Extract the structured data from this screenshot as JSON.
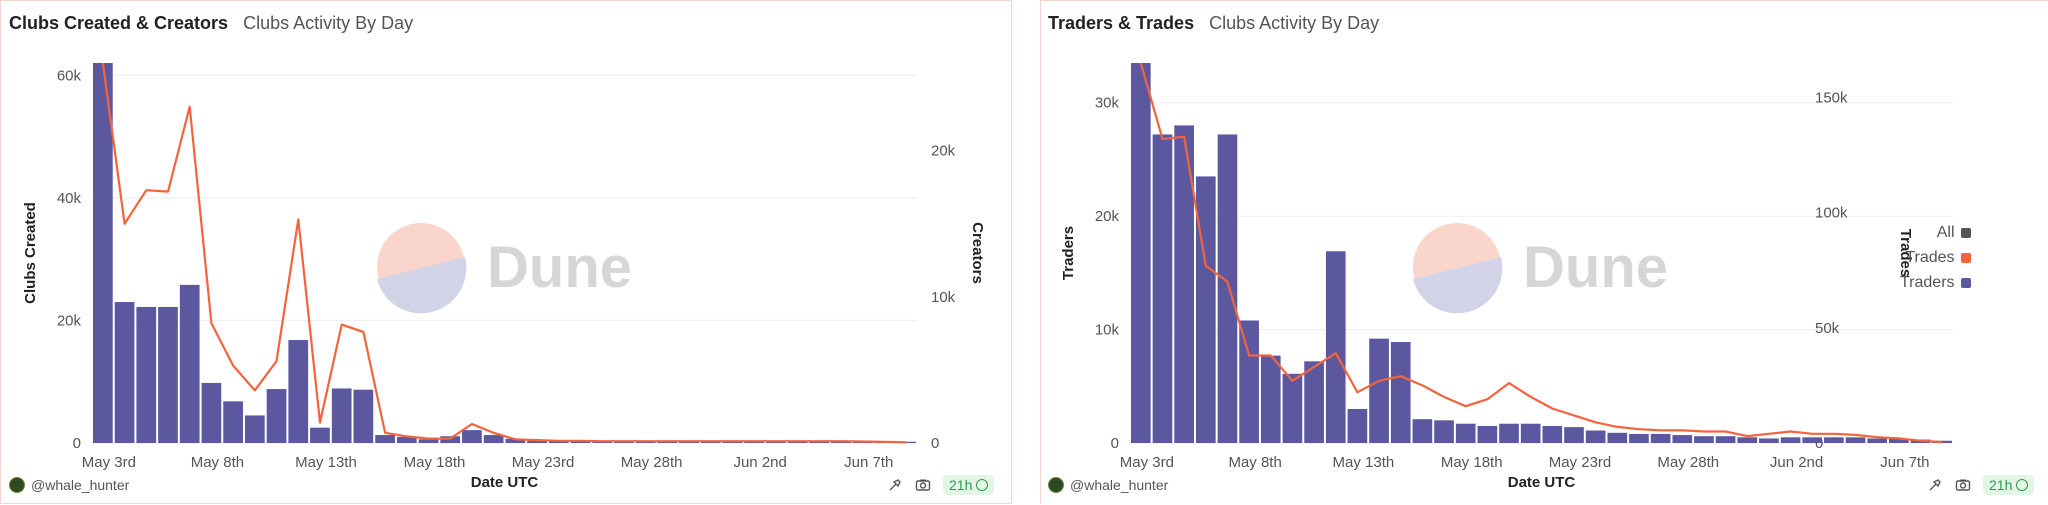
{
  "colors": {
    "bar": "#5b58a0",
    "line": "#f4643c",
    "all": "#555555",
    "watermark_top": "#f9d5cc",
    "watermark_bottom": "#d3d3e8",
    "watermark_text": "#d6d6d6"
  },
  "watermark": "Dune",
  "chart_data": [
    {
      "type": "bar",
      "title": "Clubs Created & Creators",
      "subtitle": "Clubs Activity By Day",
      "xlabel": "Date UTC",
      "ylabel": "Clubs Created",
      "y2label": "Creators",
      "x_tick_labels": [
        "May 3rd",
        "May 8th",
        "May 13th",
        "May 18th",
        "May 23rd",
        "May 28th",
        "Jun 2nd",
        "Jun 7th"
      ],
      "y_ticks": [
        "0",
        "20k",
        "40k",
        "60k"
      ],
      "y_tick_values": [
        0,
        20000,
        40000,
        60000
      ],
      "y2_ticks": [
        "0",
        "10k",
        "20k"
      ],
      "y2_tick_values": [
        0,
        10000,
        20000
      ],
      "ylim": [
        0,
        62000
      ],
      "y2lim": [
        0,
        26000
      ],
      "grid": true,
      "series": [
        {
          "kind": "bar",
          "axis": "left",
          "values": [
            64000,
            23000,
            22200,
            22200,
            25800,
            9800,
            6800,
            4500,
            8800,
            16800,
            2500,
            8900,
            8700,
            1300,
            1000,
            600,
            1100,
            2100,
            1300,
            700,
            500,
            400,
            400,
            300,
            300,
            300,
            300,
            300,
            300,
            300,
            300,
            300,
            300,
            300,
            300,
            300,
            300,
            200
          ]
        },
        {
          "kind": "line",
          "axis": "right",
          "values": [
            26000,
            15000,
            17300,
            17200,
            23000,
            8200,
            5300,
            3600,
            5600,
            15300,
            1400,
            8100,
            7600,
            700,
            450,
            300,
            300,
            1300,
            700,
            250,
            200,
            150,
            150,
            120,
            120,
            120,
            120,
            120,
            120,
            120,
            120,
            120,
            120,
            120,
            120,
            100,
            80,
            50
          ]
        }
      ]
    },
    {
      "type": "bar",
      "title": "Traders & Trades",
      "subtitle": "Clubs Activity By Day",
      "xlabel": "Date UTC",
      "ylabel": "Traders",
      "y2label": "Trades",
      "x_tick_labels": [
        "May 3rd",
        "May 8th",
        "May 13th",
        "May 18th",
        "May 23rd",
        "May 28th",
        "Jun 2nd",
        "Jun 7th"
      ],
      "y_ticks": [
        "0",
        "10k",
        "20k",
        "30k"
      ],
      "y_tick_values": [
        0,
        10000,
        20000,
        30000
      ],
      "y2_ticks": [
        "0",
        "50k",
        "100k",
        "150k"
      ],
      "y2_tick_values": [
        0,
        50000,
        100000,
        150000
      ],
      "ylim": [
        0,
        33500
      ],
      "y2lim": [
        0,
        165000
      ],
      "grid": true,
      "legend": {
        "position": "right",
        "items": [
          {
            "label": "All",
            "color": "#555555"
          },
          {
            "label": "Trades",
            "color": "#f4643c"
          },
          {
            "label": "Traders",
            "color": "#5b58a0"
          }
        ]
      },
      "series": [
        {
          "kind": "bar",
          "axis": "left",
          "name": "Traders",
          "values": [
            33500,
            27200,
            28000,
            23500,
            27200,
            10800,
            7700,
            6100,
            7200,
            16900,
            3000,
            9200,
            8900,
            2100,
            2000,
            1700,
            1500,
            1700,
            1700,
            1500,
            1400,
            1100,
            900,
            800,
            800,
            700,
            600,
            600,
            500,
            400,
            500,
            500,
            500,
            500,
            400,
            400,
            300,
            200
          ]
        },
        {
          "kind": "line",
          "axis": "right",
          "name": "Trades",
          "values": [
            165000,
            132000,
            133000,
            77000,
            70000,
            38000,
            38000,
            27000,
            33000,
            39000,
            22000,
            27000,
            29000,
            25000,
            20000,
            16000,
            19000,
            26000,
            20000,
            15000,
            12000,
            9000,
            7000,
            6000,
            5500,
            5500,
            5000,
            5000,
            3000,
            4000,
            5000,
            4000,
            4000,
            3500,
            2500,
            2000,
            1000,
            400
          ]
        }
      ]
    }
  ],
  "panels": [
    {
      "author": "@whale_hunter",
      "refresh": "21h"
    },
    {
      "author": "@whale_hunter",
      "refresh": "21h"
    }
  ]
}
